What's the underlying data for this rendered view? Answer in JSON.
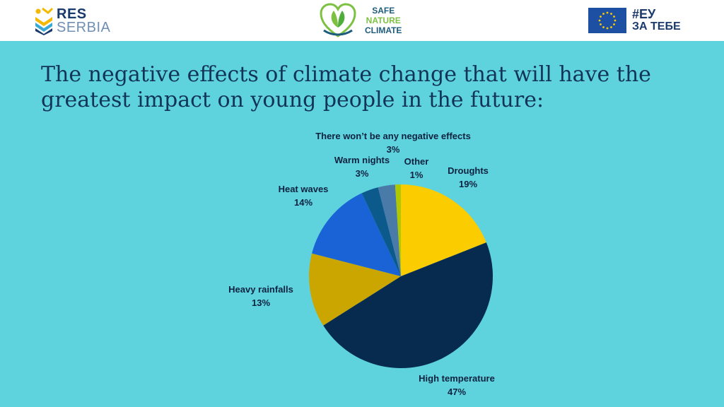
{
  "header": {
    "res_logo": {
      "line1": "RES",
      "line2": "SERBIA",
      "icon": "res-serbia-chevron-logo"
    },
    "center_logo": {
      "line1": "SAFE",
      "line2": "NATURE",
      "line3": "CLIMATE",
      "icon": "leaf-hands-heart-logo"
    },
    "eu_logo": {
      "line1": "#ЕУ",
      "line2": "ЗА ТЕБЕ",
      "icon": "eu-flag-icon"
    }
  },
  "colors": {
    "background": "#5ed3dd",
    "header": "#ffffff",
    "title": "#123456",
    "slices": [
      "#fbcc00",
      "#062b4f",
      "#cba600",
      "#1a63d6",
      "#0b5a8b",
      "#4a7aa8",
      "#b0c800"
    ]
  },
  "chart_data": {
    "type": "pie",
    "title": "The negative effects of climate change that will have the greatest impact on young people in the future:",
    "slices": [
      {
        "label": "Droughts",
        "value": 19,
        "value_label": "19%"
      },
      {
        "label": "High temperature",
        "value": 47,
        "value_label": "47%"
      },
      {
        "label": "Heavy rainfalls",
        "value": 13,
        "value_label": "13%"
      },
      {
        "label": "Heat waves",
        "value": 14,
        "value_label": "14%"
      },
      {
        "label": "Warm nights",
        "value": 3,
        "value_label": "3%"
      },
      {
        "label": "There won’t be any negative effects",
        "value": 3,
        "value_label": "3%"
      },
      {
        "label": "Other",
        "value": 1,
        "value_label": "1%"
      }
    ],
    "start": "12 o'clock",
    "direction": "clockwise"
  }
}
